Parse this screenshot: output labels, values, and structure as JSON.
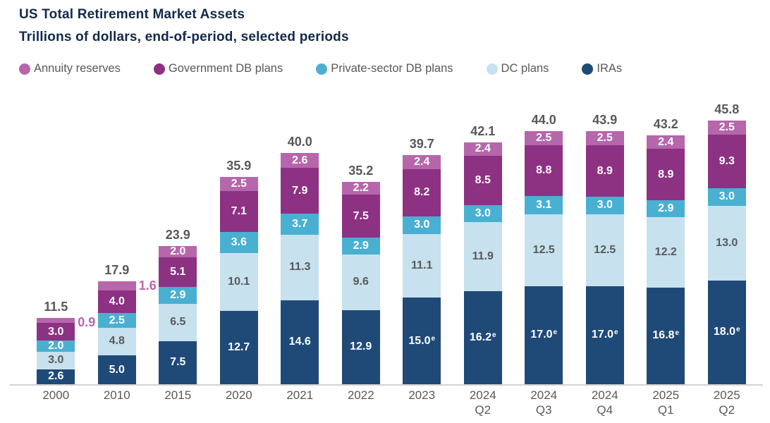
{
  "title": "US Total Retirement Market Assets",
  "subtitle": "Trillions of dollars, end-of-period, selected periods",
  "colors": {
    "title_navy": "#12294b",
    "text_gray": "#58595b",
    "axis_line": "#d2d2d2",
    "annuity_pink": "#b666ab",
    "government_purple": "#8d3183",
    "private_db_cyan": "#49b0d2",
    "dc_light_blue": "#c7e1ee",
    "ira_navy": "#1f4a77"
  },
  "legend": [
    {
      "label": "Annuity reserves",
      "color": "#b666ab"
    },
    {
      "label": "Government DB plans",
      "color": "#8d3183"
    },
    {
      "label": "Private-sector DB plans",
      "color": "#49b0d2"
    },
    {
      "label": "DC plans",
      "color": "#c7e1ee"
    },
    {
      "label": "IRAs",
      "color": "#1f4a77"
    }
  ],
  "chart_data": {
    "type": "bar",
    "variant": "stacked",
    "title": "US Total Retirement Market Assets",
    "subtitle": "Trillions of dollars, end-of-period, selected periods",
    "xlabel": "",
    "ylabel": "Trillions of dollars",
    "ylim": [
      0,
      46
    ],
    "grid": false,
    "legend_position": "top",
    "estimate_note": "e = estimated (superscript e on value labels)",
    "categories": [
      "2000",
      "2010",
      "2015",
      "2020",
      "2021",
      "2022",
      "2023",
      "2024 Q2",
      "2024 Q3",
      "2024 Q4",
      "2025 Q1",
      "2025 Q2"
    ],
    "totals": [
      11.5,
      17.9,
      23.9,
      35.9,
      40.0,
      35.2,
      39.7,
      42.1,
      44.0,
      43.9,
      43.2,
      45.8
    ],
    "series": [
      {
        "name": "IRAs",
        "color": "#1f4a77",
        "label_color": "#ffffff",
        "values": [
          2.6,
          5.0,
          7.5,
          12.7,
          14.6,
          12.9,
          15.0,
          16.2,
          17.0,
          17.0,
          16.8,
          18.0
        ],
        "estimated": [
          false,
          false,
          false,
          false,
          false,
          false,
          true,
          true,
          true,
          true,
          true,
          true
        ]
      },
      {
        "name": "DC plans",
        "color": "#c7e1ee",
        "label_color": "#58595b",
        "values": [
          3.0,
          4.8,
          6.5,
          10.1,
          11.3,
          9.6,
          11.1,
          11.9,
          12.5,
          12.5,
          12.2,
          13.0
        ]
      },
      {
        "name": "Private-sector DB plans",
        "color": "#49b0d2",
        "label_color": "#ffffff",
        "values": [
          2.0,
          2.5,
          2.9,
          3.6,
          3.7,
          2.9,
          3.0,
          3.0,
          3.1,
          3.0,
          2.9,
          3.0
        ]
      },
      {
        "name": "Government DB plans",
        "color": "#8d3183",
        "label_color": "#ffffff",
        "values": [
          3.0,
          4.0,
          5.1,
          7.1,
          7.9,
          7.5,
          8.2,
          8.5,
          8.8,
          8.9,
          8.9,
          9.3
        ]
      },
      {
        "name": "Annuity reserves",
        "color": "#b666ab",
        "label_color": "#ffffff",
        "values": [
          0.9,
          1.6,
          2.0,
          2.5,
          2.6,
          2.2,
          2.4,
          2.4,
          2.5,
          2.5,
          2.4,
          2.5
        ],
        "label_outside": [
          true,
          true,
          false,
          false,
          false,
          false,
          false,
          false,
          false,
          false,
          false,
          false
        ]
      }
    ]
  }
}
